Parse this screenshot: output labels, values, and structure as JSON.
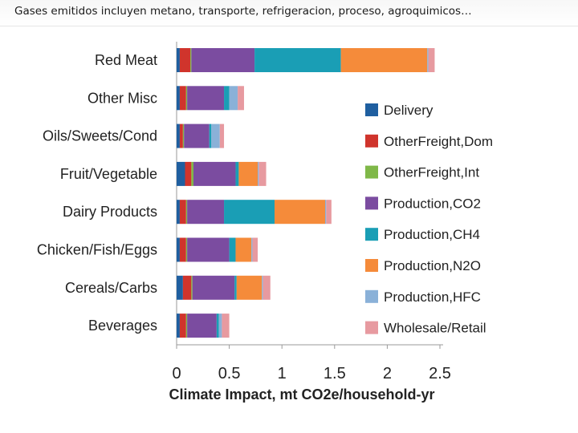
{
  "caption": "Gases emitidos incluyen metano, transporte, refrigeracion, proceso, agroquimicos…",
  "chart_data": {
    "type": "bar",
    "orientation": "horizontal",
    "stacked": true,
    "categories": [
      "Red Meat",
      "Other Misc",
      "Oils/Sweets/Cond",
      "Fruit/Vegetable",
      "Dairy Products",
      "Chicken/Fish/Eggs",
      "Cereals/Carbs",
      "Beverages"
    ],
    "series": [
      {
        "name": "Delivery",
        "color": "#1f5fa0",
        "values": [
          0.03,
          0.03,
          0.03,
          0.08,
          0.03,
          0.03,
          0.06,
          0.03
        ]
      },
      {
        "name": "OtherFreight,Dom",
        "color": "#d0342c",
        "values": [
          0.1,
          0.06,
          0.03,
          0.06,
          0.06,
          0.06,
          0.08,
          0.06
        ]
      },
      {
        "name": "OtherFreight,Int",
        "color": "#7fb848",
        "values": [
          0.01,
          0.01,
          0.01,
          0.02,
          0.01,
          0.01,
          0.01,
          0.01
        ]
      },
      {
        "name": "Production,CO2",
        "color": "#7b4ca0",
        "values": [
          0.6,
          0.35,
          0.24,
          0.4,
          0.35,
          0.4,
          0.4,
          0.28
        ]
      },
      {
        "name": "Production,CH4",
        "color": "#1a9eb5",
        "values": [
          0.82,
          0.05,
          0.02,
          0.03,
          0.48,
          0.06,
          0.02,
          0.02
        ]
      },
      {
        "name": "Production,N2O",
        "color": "#f58b3a",
        "values": [
          0.82,
          0.0,
          0.0,
          0.18,
          0.48,
          0.15,
          0.24,
          0.0
        ]
      },
      {
        "name": "Production,HFC",
        "color": "#8ab1d8",
        "values": [
          0.01,
          0.08,
          0.08,
          0.01,
          0.01,
          0.01,
          0.01,
          0.03
        ]
      },
      {
        "name": "Wholesale/Retail",
        "color": "#e79aa0",
        "values": [
          0.06,
          0.06,
          0.04,
          0.07,
          0.05,
          0.05,
          0.07,
          0.07
        ]
      }
    ],
    "xlabel": "Climate Impact, mt CO2e/household-yr",
    "ylabel": "",
    "xlim": [
      0,
      2.5
    ],
    "xticks": [
      "0",
      "0.5",
      "1",
      "1.5",
      "2",
      "2.5"
    ],
    "grid": false,
    "legend_position": "right"
  }
}
